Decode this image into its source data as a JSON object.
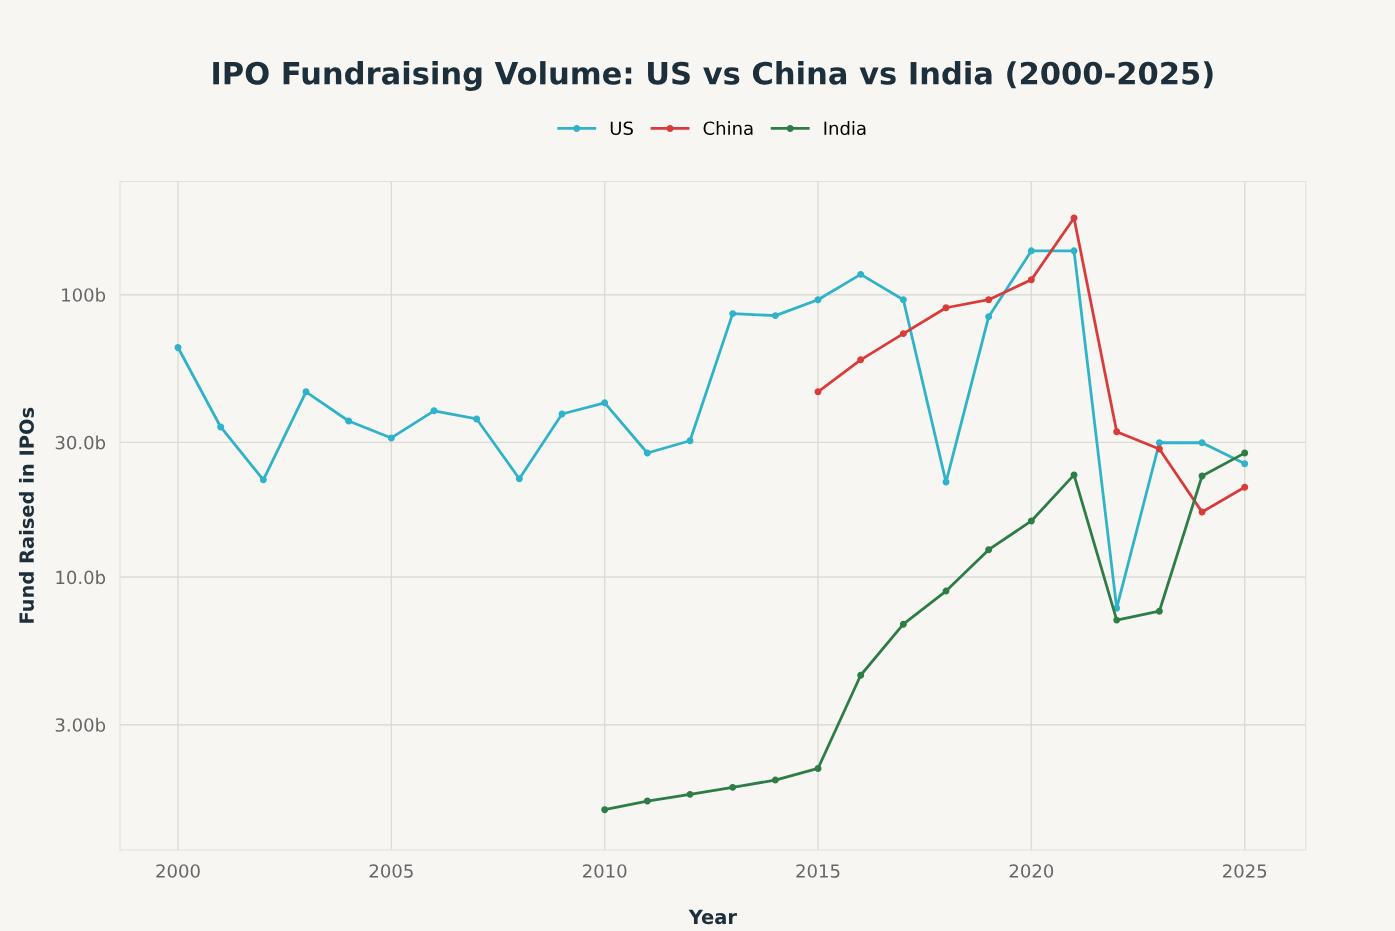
{
  "chart_data": {
    "type": "line",
    "title": "IPO Fundraising Volume: US vs China vs India (2000-2025)",
    "xlabel": "Year",
    "ylabel": "Fund Raised in IPOs",
    "xlim": [
      1998.64,
      2026.43
    ],
    "xticks": [
      2000,
      2005,
      2010,
      2015,
      2020,
      2025
    ],
    "ylim": [
      1.08,
      251.6
    ],
    "yticks": [
      {
        "value": 3,
        "label": "3.00b"
      },
      {
        "value": 10,
        "label": "10.0b"
      },
      {
        "value": 30,
        "label": "30.0b"
      },
      {
        "value": 100,
        "label": "100b"
      }
    ],
    "log": "y",
    "grid": true,
    "legend": "top",
    "marker": "circle",
    "line_style": "solid",
    "series": [
      {
        "name": "US",
        "color": "#2fb3c9",
        "x": [
          2000,
          2001,
          2002,
          2003,
          2004,
          2005,
          2006,
          2007,
          2008,
          2009,
          2010,
          2011,
          2012,
          2013,
          2014,
          2015,
          2016,
          2017,
          2018,
          2019,
          2020,
          2021,
          2022,
          2023,
          2024,
          2025
        ],
        "values": [
          65,
          34,
          22.1,
          45.3,
          35.7,
          31.1,
          38.8,
          36.3,
          22.3,
          37.8,
          41.4,
          27.5,
          30.4,
          85.7,
          84.3,
          96,
          118,
          96,
          21.7,
          83.6,
          143,
          143,
          7.76,
          29.9,
          29.9,
          25.2
        ]
      },
      {
        "name": "China",
        "color": "#d93b3b",
        "x": [
          2015,
          2016,
          2017,
          2018,
          2019,
          2020,
          2021,
          2022,
          2023,
          2024,
          2025
        ],
        "values": [
          45.3,
          58.8,
          72.8,
          89.9,
          96,
          113,
          187,
          32.7,
          28.4,
          17.0,
          20.8
        ]
      },
      {
        "name": "India",
        "color": "#2e7d46",
        "x": [
          2010,
          2011,
          2012,
          2013,
          2014,
          2015,
          2016,
          2017,
          2018,
          2019,
          2020,
          2021,
          2022,
          2023,
          2024,
          2025
        ],
        "values": [
          1.5,
          1.61,
          1.7,
          1.8,
          1.91,
          2.1,
          4.49,
          6.81,
          8.92,
          12.5,
          15.8,
          23.0,
          7.04,
          7.57,
          22.8,
          27.5
        ]
      }
    ]
  }
}
